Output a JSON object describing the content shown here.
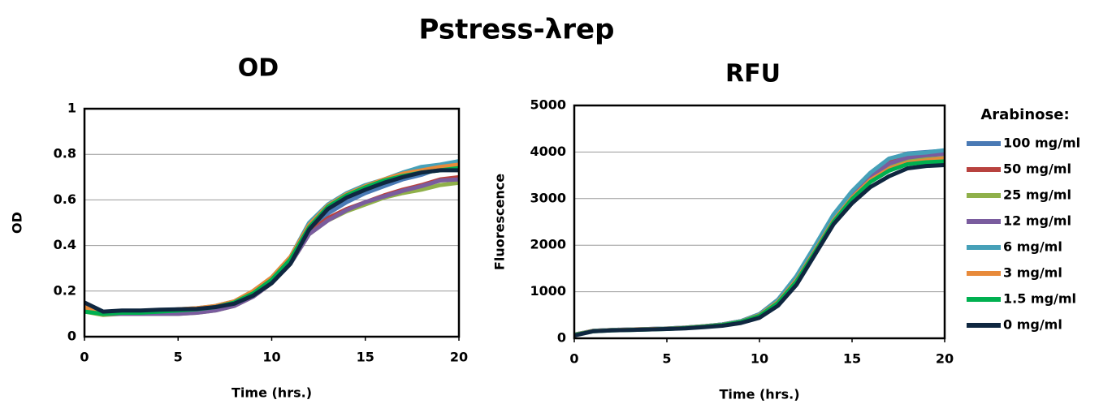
{
  "title": "Pstress-λrep",
  "chart_data": [
    {
      "type": "line",
      "title": "OD",
      "xlabel": "Time (hrs.)",
      "ylabel": "OD",
      "x": [
        0,
        1,
        2,
        3,
        4,
        5,
        6,
        7,
        8,
        9,
        10,
        11,
        12,
        13,
        14,
        15,
        16,
        17,
        18,
        19,
        20
      ],
      "xlim": [
        0,
        20
      ],
      "xticks": [
        0,
        5,
        10,
        15,
        20
      ],
      "ylim": [
        0,
        1
      ],
      "yticks": [
        0,
        0.2,
        0.4,
        0.6,
        0.8,
        1
      ],
      "grid": true,
      "series": [
        {
          "color": "#4a7ab5",
          "values": [
            0.12,
            0.1,
            0.1,
            0.1,
            0.105,
            0.105,
            0.11,
            0.12,
            0.14,
            0.18,
            0.24,
            0.33,
            0.47,
            0.54,
            0.59,
            0.63,
            0.66,
            0.69,
            0.71,
            0.74,
            0.74
          ]
        },
        {
          "color": "#b8423f",
          "values": [
            0.12,
            0.1,
            0.1,
            0.1,
            0.105,
            0.105,
            0.11,
            0.12,
            0.14,
            0.18,
            0.24,
            0.33,
            0.46,
            0.52,
            0.56,
            0.59,
            0.62,
            0.645,
            0.665,
            0.69,
            0.7
          ]
        },
        {
          "color": "#8fb04a",
          "values": [
            0.11,
            0.095,
            0.1,
            0.1,
            0.1,
            0.1,
            0.105,
            0.115,
            0.135,
            0.175,
            0.235,
            0.32,
            0.45,
            0.51,
            0.55,
            0.58,
            0.61,
            0.63,
            0.645,
            0.665,
            0.675
          ]
        },
        {
          "color": "#7a5c9e",
          "values": [
            0.12,
            0.1,
            0.1,
            0.1,
            0.1,
            0.1,
            0.105,
            0.115,
            0.135,
            0.175,
            0.235,
            0.32,
            0.45,
            0.51,
            0.555,
            0.59,
            0.615,
            0.64,
            0.66,
            0.685,
            0.69
          ]
        },
        {
          "color": "#46a0b8",
          "values": [
            0.13,
            0.105,
            0.11,
            0.11,
            0.115,
            0.12,
            0.125,
            0.135,
            0.155,
            0.2,
            0.26,
            0.35,
            0.5,
            0.58,
            0.63,
            0.665,
            0.69,
            0.72,
            0.745,
            0.755,
            0.77
          ]
        },
        {
          "color": "#e88a3a",
          "values": [
            0.13,
            0.105,
            0.11,
            0.11,
            0.115,
            0.12,
            0.125,
            0.135,
            0.155,
            0.2,
            0.26,
            0.35,
            0.49,
            0.575,
            0.625,
            0.66,
            0.69,
            0.715,
            0.73,
            0.745,
            0.755
          ]
        },
        {
          "color": "#00b050",
          "values": [
            0.11,
            0.1,
            0.105,
            0.105,
            0.11,
            0.115,
            0.12,
            0.13,
            0.15,
            0.19,
            0.25,
            0.34,
            0.48,
            0.57,
            0.62,
            0.655,
            0.685,
            0.705,
            0.72,
            0.73,
            0.74
          ]
        },
        {
          "color": "#0f2740",
          "values": [
            0.15,
            0.11,
            0.115,
            0.115,
            0.118,
            0.12,
            0.122,
            0.13,
            0.145,
            0.18,
            0.235,
            0.32,
            0.47,
            0.56,
            0.61,
            0.645,
            0.675,
            0.7,
            0.72,
            0.73,
            0.73
          ]
        }
      ]
    },
    {
      "type": "line",
      "title": "RFU",
      "xlabel": "Time (hrs.)",
      "ylabel": "Fluorescence",
      "legend_title": "Arabinose:",
      "x": [
        0,
        1,
        2,
        3,
        4,
        5,
        6,
        7,
        8,
        9,
        10,
        11,
        12,
        13,
        14,
        15,
        16,
        17,
        18,
        19,
        20
      ],
      "xlim": [
        0,
        20
      ],
      "xticks": [
        0,
        5,
        10,
        15,
        20
      ],
      "ylim": [
        0,
        5000
      ],
      "yticks": [
        0,
        1000,
        2000,
        3000,
        4000,
        5000
      ],
      "grid": true,
      "series": [
        {
          "name": "100 mg/ml",
          "color": "#4a7ab5",
          "values": [
            80,
            160,
            180,
            190,
            200,
            210,
            230,
            260,
            300,
            370,
            520,
            820,
            1330,
            1980,
            2650,
            3150,
            3550,
            3850,
            3970,
            4000,
            4030
          ]
        },
        {
          "name": "50 mg/ml",
          "color": "#b8423f",
          "values": [
            80,
            160,
            180,
            190,
            200,
            210,
            230,
            260,
            300,
            370,
            520,
            830,
            1320,
            1960,
            2620,
            3120,
            3500,
            3780,
            3920,
            3980,
            4000
          ]
        },
        {
          "name": "25 mg/ml",
          "color": "#8fb04a",
          "values": [
            70,
            155,
            175,
            185,
            195,
            205,
            225,
            255,
            295,
            360,
            500,
            790,
            1270,
            1900,
            2560,
            3050,
            3420,
            3660,
            3800,
            3850,
            3870
          ]
        },
        {
          "name": "12 mg/ml",
          "color": "#7a5c9e",
          "values": [
            75,
            155,
            175,
            185,
            195,
            205,
            225,
            255,
            295,
            365,
            510,
            800,
            1290,
            1930,
            2600,
            3100,
            3480,
            3750,
            3880,
            3930,
            3960
          ]
        },
        {
          "name": "6 mg/ml",
          "color": "#46a0b8",
          "values": [
            80,
            160,
            180,
            190,
            200,
            210,
            230,
            260,
            300,
            370,
            520,
            830,
            1340,
            1990,
            2660,
            3160,
            3560,
            3860,
            3960,
            3990,
            4040
          ]
        },
        {
          "name": "3 mg/ml",
          "color": "#e88a3a",
          "values": [
            75,
            155,
            175,
            185,
            195,
            205,
            225,
            255,
            290,
            355,
            495,
            780,
            1250,
            1880,
            2530,
            3020,
            3400,
            3640,
            3770,
            3820,
            3860
          ]
        },
        {
          "name": "1.5 mg/ml",
          "color": "#00b050",
          "values": [
            70,
            150,
            170,
            180,
            190,
            200,
            220,
            250,
            285,
            350,
            480,
            760,
            1220,
            1850,
            2500,
            2990,
            3360,
            3600,
            3740,
            3780,
            3800
          ]
        },
        {
          "name": "0 mg/ml",
          "color": "#0f2740",
          "values": [
            60,
            150,
            170,
            180,
            190,
            200,
            215,
            240,
            270,
            330,
            440,
            700,
            1150,
            1800,
            2450,
            2900,
            3250,
            3480,
            3650,
            3700,
            3720
          ]
        }
      ]
    }
  ]
}
